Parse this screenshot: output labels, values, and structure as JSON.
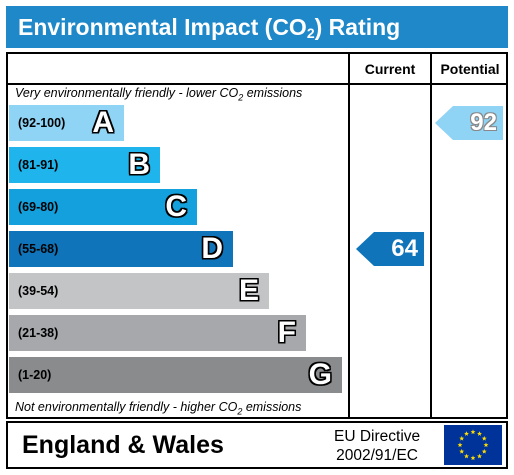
{
  "header": {
    "title_main": "Environmental Impact (CO",
    "title_sub": "2",
    "title_end": ") Rating"
  },
  "columns": {
    "current": "Current",
    "potential": "Potential"
  },
  "notes": {
    "top_main": "Very environmentally friendly - lower CO",
    "top_sub": "2",
    "top_end": " emissions",
    "bottom_main": "Not environmentally friendly - higher CO",
    "bottom_sub": "2",
    "bottom_end": " emissions"
  },
  "bands": [
    {
      "range": "(92-100)",
      "letter": "A",
      "color": "#8fd3f5"
    },
    {
      "range": "(81-91)",
      "letter": "B",
      "color": "#1fb5ec"
    },
    {
      "range": "(69-80)",
      "letter": "C",
      "color": "#14a0dc"
    },
    {
      "range": "(55-68)",
      "letter": "D",
      "color": "#0f74b9"
    },
    {
      "range": "(39-54)",
      "letter": "E",
      "color": "#c3c4c6"
    },
    {
      "range": "(21-38)",
      "letter": "F",
      "color": "#a6a8ab"
    },
    {
      "range": "(1-20)",
      "letter": "G",
      "color": "#8a8b8d"
    }
  ],
  "ratings": {
    "current": {
      "value": "64",
      "band": "D",
      "color": "#0f74b9"
    },
    "potential": {
      "value": "92",
      "band": "A",
      "color": "#8fd3f5"
    }
  },
  "footer": {
    "region": "England & Wales",
    "directive_line1": "EU Directive",
    "directive_line2": "2002/91/EC"
  },
  "flag": {
    "icon": "eu-flag-icon",
    "background": "#003399",
    "stars": "#ffdd00"
  }
}
